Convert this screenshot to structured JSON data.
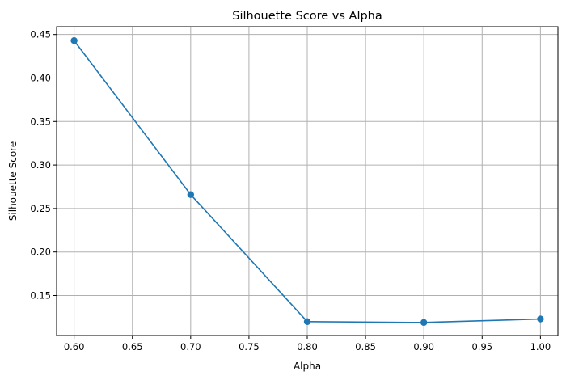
{
  "chart_data": {
    "type": "line",
    "title": "Silhouette Score vs Alpha",
    "xlabel": "Alpha",
    "ylabel": "Silhouette Score",
    "grid": true,
    "x": [
      0.6,
      0.7,
      0.8,
      0.9,
      1.0
    ],
    "series": [
      {
        "values": [
          0.443,
          0.266,
          0.12,
          0.119,
          0.123
        ],
        "color": "#1f77b4",
        "marker": "circle"
      }
    ],
    "xlim": [
      0.585,
      1.015
    ],
    "ylim": [
      0.104,
      0.459
    ],
    "xticks": [
      0.6,
      0.65,
      0.7,
      0.75,
      0.8,
      0.85,
      0.9,
      0.95,
      1.0
    ],
    "xtick_labels": [
      "0.60",
      "0.65",
      "0.70",
      "0.75",
      "0.80",
      "0.85",
      "0.90",
      "0.95",
      "1.00"
    ],
    "yticks": [
      0.15,
      0.2,
      0.25,
      0.3,
      0.35,
      0.4,
      0.45
    ],
    "ytick_labels": [
      "0.15",
      "0.20",
      "0.25",
      "0.30",
      "0.35",
      "0.40",
      "0.45"
    ]
  }
}
